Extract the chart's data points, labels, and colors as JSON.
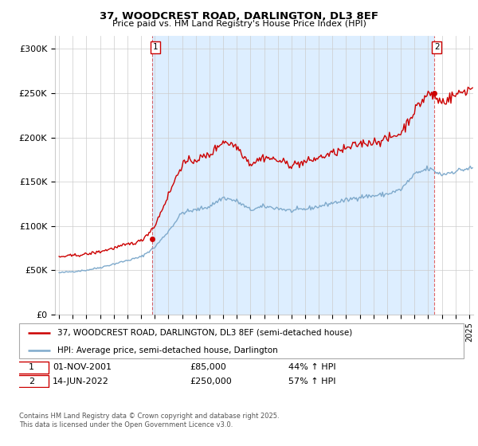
{
  "title": "37, WOODCREST ROAD, DARLINGTON, DL3 8EF",
  "subtitle": "Price paid vs. HM Land Registry's House Price Index (HPI)",
  "ylabel_ticks": [
    "£0",
    "£50K",
    "£100K",
    "£150K",
    "£200K",
    "£250K",
    "£300K"
  ],
  "ytick_values": [
    0,
    50000,
    100000,
    150000,
    200000,
    250000,
    300000
  ],
  "ylim": [
    0,
    315000
  ],
  "xlim_start": 1994.7,
  "xlim_end": 2025.3,
  "sale1_x": 2001.83,
  "sale1_y": 85000,
  "sale2_x": 2022.45,
  "sale2_y": 250000,
  "legend_line1": "37, WOODCREST ROAD, DARLINGTON, DL3 8EF (semi-detached house)",
  "legend_line2": "HPI: Average price, semi-detached house, Darlington",
  "footer": "Contains HM Land Registry data © Crown copyright and database right 2025.\nThis data is licensed under the Open Government Licence v3.0.",
  "red_color": "#cc0000",
  "blue_color": "#7faacc",
  "shade_color": "#ddeeff",
  "grid_color": "#cccccc",
  "background_color": "#ffffff",
  "hpi_year_values": {
    "1995": 47000,
    "1996": 48500,
    "1997": 50000,
    "1998": 53000,
    "1999": 57000,
    "2000": 61000,
    "2001": 65000,
    "2002": 76000,
    "2003": 94000,
    "2004": 115000,
    "2005": 118000,
    "2006": 122000,
    "2007": 132000,
    "2008": 128000,
    "2009": 118000,
    "2010": 122000,
    "2011": 120000,
    "2012": 117000,
    "2013": 119000,
    "2014": 122000,
    "2015": 126000,
    "2016": 129000,
    "2017": 133000,
    "2018": 134000,
    "2019": 136000,
    "2020": 141000,
    "2021": 158000,
    "2022": 165000,
    "2023": 158000,
    "2024": 162000,
    "2025": 165000
  },
  "prop_year_values": {
    "1995": 65000,
    "1996": 66500,
    "1997": 68000,
    "1998": 71000,
    "1999": 75000,
    "2000": 79000,
    "2001": 83000,
    "2002": 100000,
    "2003": 135000,
    "2004": 170000,
    "2005": 175000,
    "2006": 180000,
    "2007": 196000,
    "2008": 190000,
    "2009": 170000,
    "2010": 178000,
    "2011": 174000,
    "2012": 169000,
    "2013": 172000,
    "2014": 177000,
    "2015": 182000,
    "2016": 187000,
    "2017": 193000,
    "2018": 195000,
    "2019": 198000,
    "2020": 205000,
    "2021": 230000,
    "2022": 250000,
    "2023": 240000,
    "2024": 248000,
    "2025": 255000
  }
}
